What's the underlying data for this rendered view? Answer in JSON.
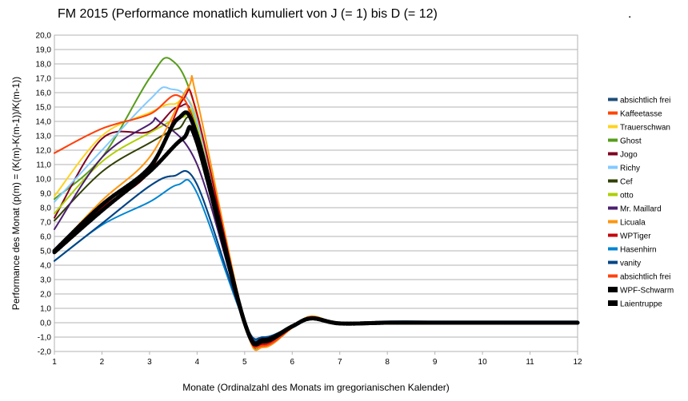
{
  "chart_data": {
    "type": "line",
    "title": "FM 2015 (Performance monatlich kumuliert von J (= 1) bis D (= 12)",
    "title_suffix": ".",
    "xlabel": "Monate (Ordinalzahl des Monats im gregorianischen Kalender)",
    "ylabel": "Performance des Monat (p(m) = (K(m)-K(m-1))/K(m-1))",
    "xlim": [
      1,
      12
    ],
    "ylim": [
      -2,
      20
    ],
    "x_ticks": [
      "1",
      "2",
      "3",
      "4",
      "5",
      "6",
      "7",
      "8",
      "9",
      "10",
      "11",
      "12"
    ],
    "y_ticks": [
      "-2,0",
      "-1,0",
      "0,0",
      "1,0",
      "2,0",
      "3,0",
      "4,0",
      "5,0",
      "6,0",
      "7,0",
      "8,0",
      "9,0",
      "10,0",
      "11,0",
      "12,0",
      "13,0",
      "14,0",
      "15,0",
      "16,0",
      "17,0",
      "18,0",
      "19,0",
      "20,0"
    ],
    "grid": "horizontal",
    "legend_position": "right",
    "x": [
      1,
      2,
      3,
      4,
      5,
      6,
      7,
      8,
      9,
      10,
      11,
      12
    ],
    "series": [
      {
        "name": "absichtlich frei",
        "color": "#1f4e79",
        "width": 2,
        "values": [
          4.3,
          6.9,
          9.5,
          9.6,
          0,
          -0.3,
          0,
          0.1,
          0.1,
          0.1,
          0.1,
          0.1
        ],
        "peak": [
          3.5,
          10.2
        ]
      },
      {
        "name": "Kaffeetasse",
        "color": "#ff4500",
        "width": 2,
        "values": [
          11.8,
          13.5,
          14.5,
          13.0,
          0,
          -0.4,
          0,
          0,
          0,
          0,
          0,
          0
        ],
        "peak": [
          3.6,
          15.8
        ]
      },
      {
        "name": "Trauerschwan",
        "color": "#ffd320",
        "width": 2,
        "values": [
          8.8,
          13.0,
          14.6,
          14.2,
          0,
          -0.4,
          0,
          0,
          0,
          0,
          0,
          0
        ],
        "peak": [
          3.5,
          15.2
        ]
      },
      {
        "name": "Ghost",
        "color": "#579d1c",
        "width": 2,
        "values": [
          8.6,
          11.5,
          17.0,
          14.5,
          0,
          -0.4,
          0,
          0,
          0,
          0,
          0,
          0
        ],
        "peak": [
          3.45,
          18.3
        ]
      },
      {
        "name": "Jogo",
        "color": "#7e0021",
        "width": 2,
        "values": [
          7.3,
          12.8,
          13.3,
          13.5,
          0,
          -0.3,
          0,
          0,
          0,
          0,
          0,
          0
        ],
        "peak": [
          3.6,
          15.0
        ]
      },
      {
        "name": "Richy",
        "color": "#83caff",
        "width": 2,
        "values": [
          8.4,
          12.0,
          15.5,
          14.0,
          0,
          -0.4,
          0,
          0,
          0,
          0,
          0,
          0
        ],
        "peak": [
          3.4,
          16.3
        ]
      },
      {
        "name": "Cef",
        "color": "#314004",
        "width": 2,
        "values": [
          7.1,
          10.5,
          12.5,
          13.2,
          0,
          -0.3,
          0,
          0,
          0,
          0,
          0,
          0
        ],
        "peak": [
          3.6,
          13.5
        ]
      },
      {
        "name": "otto",
        "color": "#aecf00",
        "width": 2,
        "values": [
          7.6,
          11.2,
          13.2,
          13.6,
          0,
          -0.4,
          0,
          0,
          0,
          0,
          0,
          0
        ],
        "peak": [
          3.7,
          14.3
        ]
      },
      {
        "name": "Mr. Maillard",
        "color": "#4b1f6f",
        "width": 2,
        "values": [
          6.5,
          11.5,
          13.8,
          11.0,
          0,
          -0.3,
          0,
          0,
          0,
          0,
          0,
          0
        ],
        "peak": [
          3.2,
          14.0
        ]
      },
      {
        "name": "Licuala",
        "color": "#ff950e",
        "width": 2,
        "values": [
          5.0,
          8.5,
          11.5,
          15.5,
          0,
          -0.4,
          0,
          0,
          0,
          0,
          0,
          0
        ],
        "peak": [
          3.8,
          16.3
        ]
      },
      {
        "name": "WPTiger",
        "color": "#c5000b",
        "width": 2,
        "values": [
          5.0,
          8.0,
          10.5,
          14.5,
          0,
          -0.4,
          0,
          0,
          0,
          0,
          0,
          0
        ],
        "peak": [
          3.7,
          15.5
        ]
      },
      {
        "name": "Hasenhirn",
        "color": "#0084d1",
        "width": 2,
        "values": [
          4.3,
          6.8,
          8.4,
          9.0,
          0,
          -0.4,
          0,
          0,
          0,
          0,
          0,
          0
        ],
        "peak": [
          3.6,
          9.6
        ]
      },
      {
        "name": "vanity",
        "color": "#004586",
        "width": 2,
        "values": [
          4.3,
          6.9,
          9.5,
          9.6,
          0,
          -0.3,
          0,
          0,
          0,
          0,
          0,
          0
        ],
        "peak": [
          3.5,
          10.2
        ]
      },
      {
        "name": "absichtlich frei",
        "color": "#ff420e",
        "width": 2,
        "values": [
          11.8,
          13.5,
          14.5,
          13.0,
          0,
          -0.4,
          0,
          0,
          0,
          0,
          0,
          0
        ],
        "peak": [
          3.6,
          15.8
        ]
      },
      {
        "name": "WPF-Schwarm",
        "color": "#000000",
        "width": 5,
        "values": [
          5.0,
          8.2,
          10.8,
          13.0,
          0,
          -0.3,
          0,
          0,
          0,
          0,
          0,
          0
        ],
        "peak": [
          3.6,
          14.2
        ]
      },
      {
        "name": "Laientruppe",
        "color": "#000000",
        "width": 5,
        "values": [
          4.9,
          7.8,
          10.5,
          12.5,
          0,
          -0.3,
          0,
          0,
          0,
          0,
          0,
          0
        ],
        "peak": [
          3.7,
          12.8
        ]
      }
    ],
    "trough_x": 5.4,
    "trough_values": [
      -1.0,
      -1.6,
      -1.4,
      -1.7,
      -1.3,
      -1.5,
      -1.2,
      -1.4,
      -1.1,
      -1.7,
      -1.5,
      -1.2,
      -1.0,
      -1.6,
      -1.3,
      -1.2
    ],
    "bump_x": 6.4,
    "bump_values": [
      0.25,
      0.4,
      0.35,
      0.45,
      0.3,
      0.4,
      0.3,
      0.35,
      0.3,
      0.45,
      0.4,
      0.3,
      0.25,
      0.4,
      0.3,
      0.3
    ]
  }
}
